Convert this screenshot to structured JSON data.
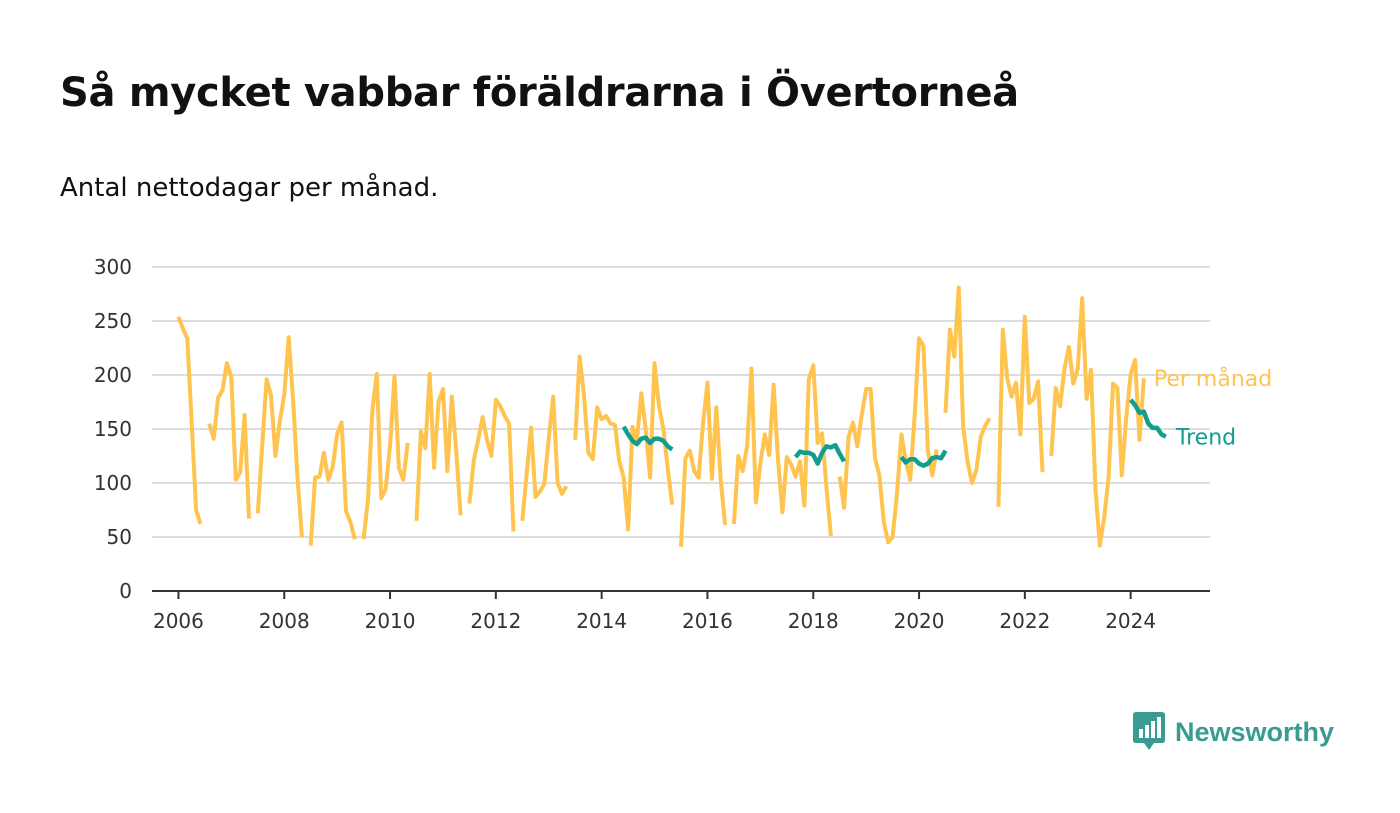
{
  "title": "Så mycket vabbar föräldrarna i Övertorneå",
  "subtitle": "Antal nettodagar per månad.",
  "brand": {
    "name": "Newsworthy",
    "icon": "newsworthy-logo-icon",
    "color": "#3a9b93"
  },
  "colors": {
    "monthly": "#fec44f",
    "trend": "#119e8e",
    "grid": "#dddddd",
    "axis": "#333333"
  },
  "chart_data": {
    "type": "line",
    "xlim": [
      "2005-07",
      "2025-07"
    ],
    "ylim": [
      0,
      300
    ],
    "yticks": [
      0,
      50,
      100,
      150,
      200,
      250,
      300
    ],
    "xticks": [
      "2006",
      "2008",
      "2010",
      "2012",
      "2014",
      "2016",
      "2018",
      "2020",
      "2022",
      "2024"
    ],
    "grid": true,
    "legend": "inline-right",
    "series": [
      {
        "name": "Per månad",
        "start": "2006-01",
        "values": [
          254,
          243,
          234,
          155,
          75,
          62,
          null,
          155,
          141,
          179,
          186,
          211,
          198,
          103,
          110,
          163,
          67,
          null,
          72,
          135,
          196,
          181,
          125,
          157,
          182,
          235,
          177,
          105,
          50,
          null,
          42,
          105,
          106,
          128,
          103,
          115,
          145,
          156,
          74,
          64,
          48,
          null,
          48,
          85,
          168,
          201,
          86,
          94,
          135,
          199,
          114,
          103,
          137,
          null,
          65,
          148,
          132,
          201,
          114,
          175,
          187,
          111,
          180,
          130,
          70,
          null,
          81,
          121,
          140,
          161,
          140,
          125,
          177,
          171,
          162,
          155,
          55,
          null,
          65,
          109,
          151,
          87,
          92,
          99,
          142,
          180,
          100,
          90,
          97,
          null,
          140,
          217,
          181,
          128,
          122,
          170,
          159,
          162,
          155,
          154,
          120,
          105,
          57,
          152,
          140,
          183,
          150,
          105,
          211,
          171,
          150,
          113,
          80,
          null,
          41,
          123,
          130,
          111,
          105,
          155,
          193,
          104,
          170,
          103,
          61,
          null,
          62,
          125,
          111,
          134,
          206,
          82,
          118,
          145,
          126,
          191,
          122,
          73,
          124,
          117,
          106,
          120,
          79,
          196,
          209,
          137,
          146,
          95,
          51,
          null,
          106,
          77,
          142,
          156,
          134,
          163,
          187,
          187,
          123,
          107,
          64,
          45,
          50,
          90,
          145,
          120,
          103,
          162,
          234,
          227,
          130,
          107,
          131,
          null,
          165,
          242,
          217,
          281,
          153,
          120,
          100,
          112,
          143,
          153,
          160,
          null,
          78,
          242,
          197,
          180,
          193,
          145,
          254,
          174,
          178,
          194,
          110,
          null,
          125,
          188,
          171,
          206,
          226,
          192,
          206,
          271,
          178,
          205,
          95,
          42,
          68,
          105,
          192,
          188,
          107,
          160,
          201,
          214,
          140,
          197
        ]
      },
      {
        "name": "Trend",
        "start": "2006-01",
        "values": [
          null,
          null,
          null,
          null,
          null,
          null,
          null,
          null,
          null,
          null,
          null,
          null,
          null,
          null,
          null,
          null,
          null,
          null,
          null,
          null,
          null,
          null,
          null,
          null,
          null,
          null,
          null,
          null,
          null,
          null,
          null,
          null,
          null,
          null,
          null,
          null,
          null,
          null,
          null,
          null,
          null,
          null,
          null,
          null,
          null,
          null,
          null,
          null,
          null,
          null,
          null,
          null,
          null,
          null,
          null,
          null,
          null,
          null,
          null,
          null,
          null,
          null,
          null,
          null,
          null,
          null,
          null,
          null,
          null,
          null,
          null,
          null,
          null,
          null,
          null,
          null,
          null,
          null,
          null,
          null,
          null,
          null,
          null,
          null,
          null,
          null,
          null,
          null,
          null,
          null,
          null,
          null,
          null,
          null,
          null,
          null,
          null,
          null,
          null,
          null,
          null,
          152,
          145,
          139,
          136,
          141,
          142,
          137,
          141,
          141,
          139,
          134,
          131,
          null,
          null,
          null,
          null,
          null,
          null,
          null,
          null,
          null,
          null,
          null,
          null,
          null,
          null,
          null,
          null,
          null,
          null,
          null,
          null,
          null,
          null,
          null,
          null,
          null,
          null,
          null,
          124,
          129,
          128,
          128,
          126,
          118,
          128,
          134,
          133,
          135,
          127,
          120,
          null,
          null,
          null,
          null,
          null,
          null,
          null,
          null,
          null,
          null,
          null,
          null,
          124,
          119,
          122,
          122,
          118,
          116,
          118,
          123,
          124,
          123,
          130,
          null,
          null,
          null,
          null,
          null,
          null,
          null,
          null,
          null,
          null,
          null,
          null,
          null,
          null,
          null,
          null,
          null,
          null,
          null,
          null,
          null,
          null,
          null,
          null,
          null,
          null,
          null,
          null,
          null,
          null,
          null,
          null,
          null,
          null,
          null,
          null,
          null,
          null,
          null,
          null,
          null,
          177,
          172,
          165,
          166,
          155,
          151,
          151,
          145,
          143
        ]
      }
    ],
    "series_labels": [
      "Per månad",
      "Trend"
    ]
  }
}
